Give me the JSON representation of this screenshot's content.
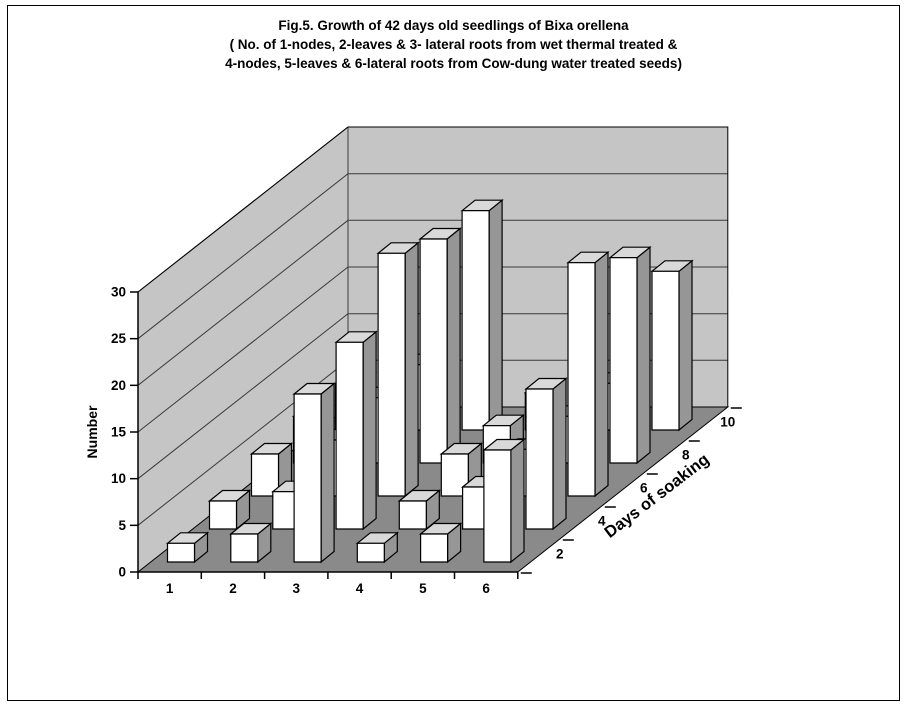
{
  "figure": {
    "title_line1": "Fig.5. Growth of 42 days old seedlings of Bixa orellena",
    "title_line2": "( No. of 1-nodes, 2-leaves &  3- lateral roots from wet thermal treated &",
    "title_line3": "4-nodes, 5-leaves &  6-lateral roots from Cow-dung water treated seeds)"
  },
  "chart_data": {
    "type": "bar",
    "projection": "3d-column",
    "title": "Fig.5. Growth of 42 days old seedlings of Bixa orellena",
    "categories": [
      "1",
      "2",
      "3",
      "4",
      "5",
      "6"
    ],
    "xlabel": "",
    "ylabel": "Number",
    "depth_label": "Days of soaking",
    "ylim": [
      0,
      30
    ],
    "yticks": [
      0,
      5,
      10,
      15,
      20,
      25,
      30
    ],
    "grid": true,
    "legend_position": "none",
    "series": [
      {
        "name": "2 days soaking",
        "depth": "2",
        "values": [
          2,
          3,
          18,
          2,
          3,
          12
        ]
      },
      {
        "name": "4 days soaking",
        "depth": "4",
        "values": [
          3,
          4,
          20,
          3,
          4.5,
          15
        ]
      },
      {
        "name": "6 days soaking",
        "depth": "6",
        "values": [
          4.5,
          6,
          26,
          4.5,
          5,
          25
        ]
      },
      {
        "name": "8 days soaking",
        "depth": "8",
        "values": [
          5,
          7,
          24,
          4,
          5,
          22
        ]
      },
      {
        "name": "10 days soaking",
        "depth": "10",
        "values": [
          5,
          7,
          23.5,
          4,
          5,
          17
        ]
      }
    ],
    "colors": {
      "bar_front": "#ffffff",
      "bar_top": "#d9d9d9",
      "bar_side": "#969696",
      "wall": "#c5c5c5",
      "floor": "#8a8a8a",
      "outline": "#000000",
      "gridline": "#3a3a3a"
    }
  }
}
